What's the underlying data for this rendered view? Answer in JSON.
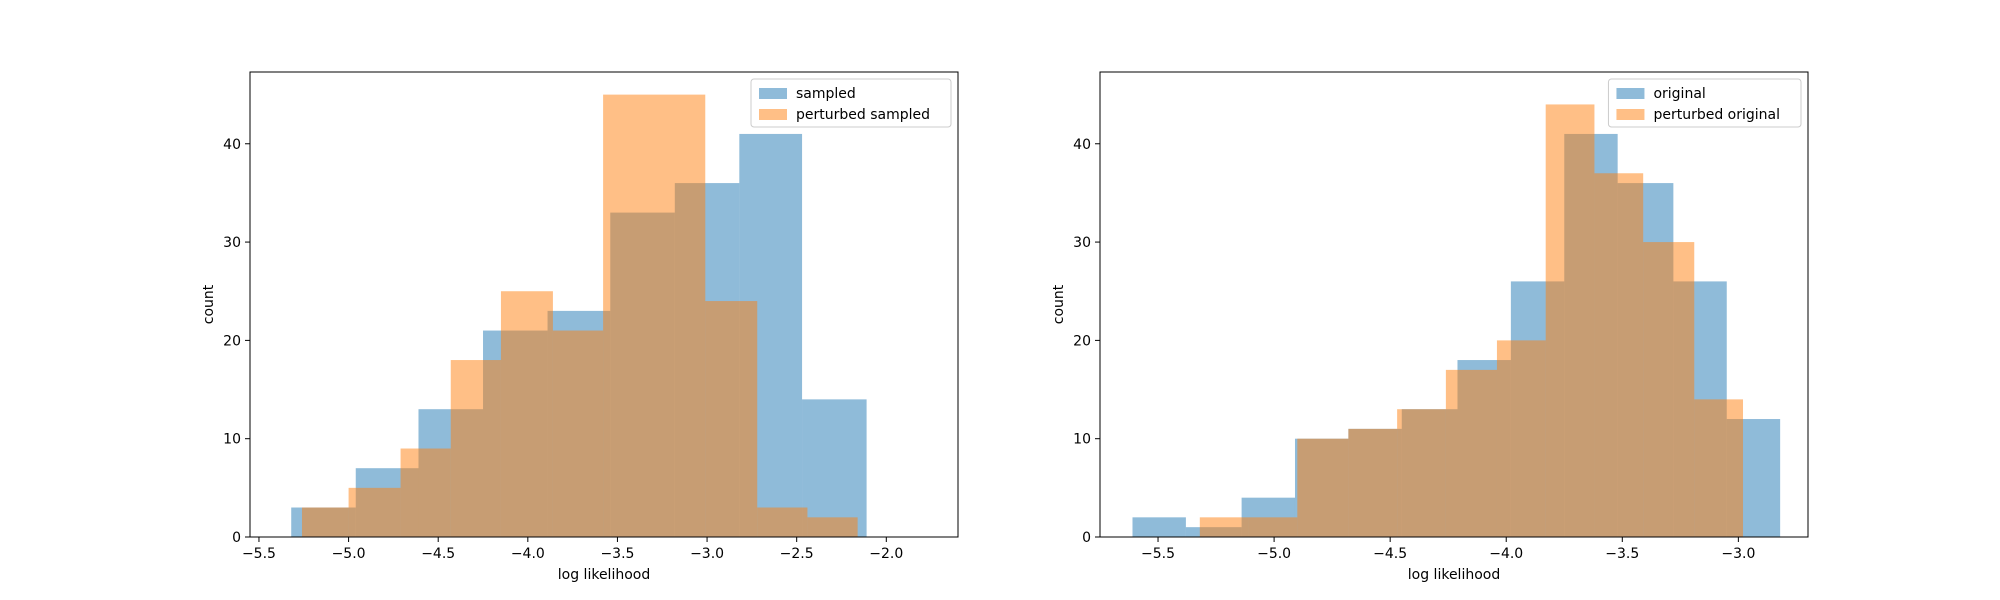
{
  "chart_data": [
    {
      "type": "bar",
      "subtype": "overlaid-histogram",
      "title": "",
      "xlabel": "log likelihood",
      "ylabel": "count",
      "xlim": [
        -5.55,
        -1.6
      ],
      "ylim": [
        0,
        47.3
      ],
      "xticks": [
        -5.5,
        -5.0,
        -4.5,
        -4.0,
        -3.5,
        -3.0,
        -2.5,
        -2.0
      ],
      "xtick_labels": [
        "−5.5",
        "−5.0",
        "−4.5",
        "−4.0",
        "−3.5",
        "−3.0",
        "−2.5",
        "−2.0"
      ],
      "yticks": [
        0,
        10,
        20,
        30,
        40
      ],
      "ytick_labels": [
        "0",
        "10",
        "20",
        "30",
        "40"
      ],
      "legend": "top-right",
      "grid": false,
      "series": [
        {
          "name": "sampled",
          "color": "#1f77b4",
          "bin_edges": [
            -5.32,
            -4.96,
            -4.61,
            -4.25,
            -3.89,
            -3.54,
            -3.18,
            -2.82,
            -2.47,
            -2.11,
            -1.76
          ],
          "counts": [
            3,
            7,
            13,
            21,
            23,
            33,
            36,
            41,
            14,
            0,
            2
          ]
        },
        {
          "name": "perturbed sampled",
          "color": "#ff7f0e",
          "bin_edges": [
            -5.26,
            -5.0,
            -4.71,
            -4.43,
            -4.15,
            -3.86,
            -3.58,
            -3.01,
            -2.72,
            -2.44,
            -2.16
          ],
          "counts": [
            3,
            5,
            9,
            18,
            25,
            21,
            45,
            24,
            3,
            2
          ]
        }
      ]
    },
    {
      "type": "bar",
      "subtype": "overlaid-histogram",
      "title": "",
      "xlabel": "log likelihood",
      "ylabel": "count",
      "xlim": [
        -5.75,
        -2.7
      ],
      "ylim": [
        0,
        47.3
      ],
      "xticks": [
        -5.5,
        -5.0,
        -4.5,
        -4.0,
        -3.5,
        -3.0
      ],
      "xtick_labels": [
        "−5.5",
        "−5.0",
        "−4.5",
        "−4.0",
        "−3.5",
        "−3.0"
      ],
      "yticks": [
        0,
        10,
        20,
        30,
        40
      ],
      "ytick_labels": [
        "0",
        "10",
        "20",
        "30",
        "40"
      ],
      "legend": "top-right",
      "grid": false,
      "series": [
        {
          "name": "original",
          "color": "#1f77b4",
          "bin_edges": [
            -5.61,
            -5.38,
            -5.14,
            -4.91,
            -4.68,
            -4.45,
            -4.21,
            -3.98,
            -3.75,
            -3.52,
            -3.28,
            -3.05,
            -2.82
          ],
          "counts": [
            2,
            1,
            4,
            10,
            11,
            13,
            18,
            26,
            41,
            36,
            26,
            12
          ]
        },
        {
          "name": "perturbed original",
          "color": "#ff7f0e",
          "bin_edges": [
            -5.32,
            -5.11,
            -4.9,
            -4.68,
            -4.47,
            -4.26,
            -4.04,
            -3.83,
            -3.62,
            -3.41,
            -3.19,
            -2.98
          ],
          "counts": [
            2,
            2,
            10,
            11,
            13,
            17,
            20,
            44,
            37,
            30,
            14
          ]
        }
      ]
    }
  ]
}
